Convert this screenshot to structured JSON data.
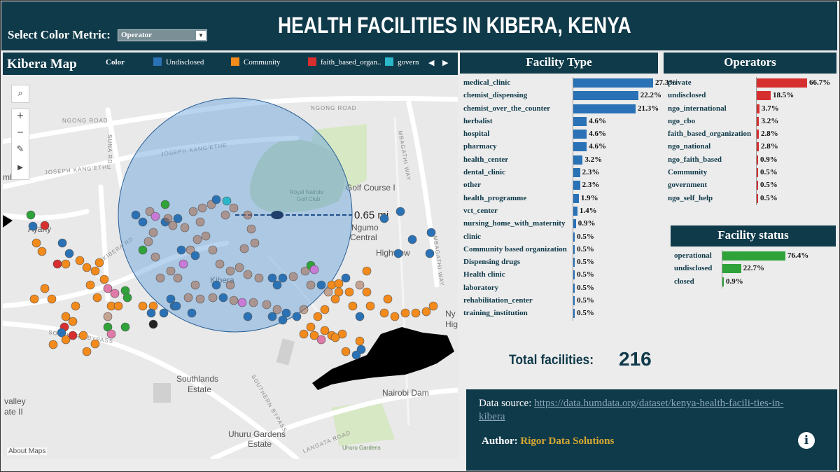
{
  "header": {
    "select_label": "Select Color Metric:",
    "select_value": "Operator",
    "title": "HEALTH FACILITIES IN KIBERA, KENYA"
  },
  "map": {
    "title": "Kibera Map",
    "legend_label": "Color",
    "legend": [
      {
        "label": "Undisclosed",
        "color": "#2a72b5"
      },
      {
        "label": "Community",
        "color": "#f28a1c"
      },
      {
        "label": "faith_based_organ..",
        "color": "#d62f2f"
      },
      {
        "label": "govern",
        "color": "#2bb6c9"
      }
    ],
    "distance": "0.65 mi",
    "place_labels": {
      "ngong_road_1": "NGONG ROAD",
      "ngong_road_2": "NGONG ROAD",
      "suna_rd": "SUNA RD",
      "joseph_kang_ethe_1": "JOSEPH KANG'ETHE",
      "joseph_kang_ethe_2": "JOSEPH KANG'ETHE",
      "mbagathi_way_1": "MBAGATHI WAY",
      "mbagathi_way_2": "MBAGATHI WAY",
      "amhuri": "mhuri",
      "ayany": "Ayany",
      "royal_nairobi": "Royal Nairobi",
      "golf_club": "Golf Club",
      "golf_course": "Golf Course I",
      "ngumo": "Ngumo",
      "central": "Central",
      "highview": "Highview",
      "kibera": "Kibera",
      "kibera_rd": "KIBERA RD",
      "southern_bypass_1": "SOUTHERN BYPASS",
      "southern_bypass_2": "SOUTHERN BYPASS",
      "southlands": "Southlands",
      "estate_1": "Estate",
      "nairobi_dam": "Nairobi Dam",
      "valley": "valley",
      "estate_2": "ate II",
      "uhuru_gardens": "Uhuru Gardens",
      "estate_3": "Estate",
      "uhuru_park": "Uhuru Gardens",
      "langata_road": "LANGATA ROAD",
      "ny": "Ny",
      "hig": "Hig"
    },
    "about": "About Maps",
    "controls": {
      "zoom_in": "+",
      "zoom_out": "−"
    }
  },
  "facility_type": {
    "title": "Facility Type",
    "color": "#2a72b5",
    "items": [
      {
        "label": "medical_clinic",
        "value": 27.3,
        "text": "27.3%"
      },
      {
        "label": "chemist_dispensing",
        "value": 22.2,
        "text": "22.2%"
      },
      {
        "label": "chemist_over_the_counter",
        "value": 21.3,
        "text": "21.3%"
      },
      {
        "label": "herbalist",
        "value": 4.6,
        "text": "4.6%"
      },
      {
        "label": "hospital",
        "value": 4.6,
        "text": "4.6%"
      },
      {
        "label": "pharmacy",
        "value": 4.6,
        "text": "4.6%"
      },
      {
        "label": "health_center",
        "value": 3.2,
        "text": "3.2%"
      },
      {
        "label": "dental_clinic",
        "value": 2.3,
        "text": "2.3%"
      },
      {
        "label": "other",
        "value": 2.3,
        "text": "2.3%"
      },
      {
        "label": "health_programme",
        "value": 1.9,
        "text": "1.9%"
      },
      {
        "label": "vct_center",
        "value": 1.4,
        "text": "1.4%"
      },
      {
        "label": "nursing_home_with_maternity",
        "value": 0.9,
        "text": "0.9%"
      },
      {
        "label": "clinic",
        "value": 0.5,
        "text": "0.5%"
      },
      {
        "label": "Community based organization",
        "value": 0.5,
        "text": "0.5%"
      },
      {
        "label": "Dispensing drugs",
        "value": 0.5,
        "text": "0.5%"
      },
      {
        "label": "Health clinic",
        "value": 0.5,
        "text": "0.5%"
      },
      {
        "label": "laboratory",
        "value": 0.5,
        "text": "0.5%"
      },
      {
        "label": "rehabilitation_center",
        "value": 0.5,
        "text": "0.5%"
      },
      {
        "label": "training_institution",
        "value": 0.5,
        "text": "0.5%"
      }
    ]
  },
  "operators": {
    "title": "Operators",
    "color": "#d62f2f",
    "items": [
      {
        "label": "private",
        "value": 66.7,
        "text": "66.7%"
      },
      {
        "label": "undisclosed",
        "value": 18.5,
        "text": "18.5%"
      },
      {
        "label": "ngo_international",
        "value": 3.7,
        "text": "3.7%"
      },
      {
        "label": "ngo_cbo",
        "value": 3.2,
        "text": "3.2%"
      },
      {
        "label": "faith_based_organization",
        "value": 2.8,
        "text": "2.8%"
      },
      {
        "label": "ngo_national",
        "value": 2.8,
        "text": "2.8%"
      },
      {
        "label": "ngo_faith_based",
        "value": 0.9,
        "text": "0.9%"
      },
      {
        "label": "Community",
        "value": 0.5,
        "text": "0.5%"
      },
      {
        "label": "government",
        "value": 0.5,
        "text": "0.5%"
      },
      {
        "label": "ngo_self_help",
        "value": 0.5,
        "text": "0.5%"
      }
    ]
  },
  "facility_status": {
    "title": "Facility status",
    "color": "#2fa23a",
    "items": [
      {
        "label": "operational",
        "value": 76.4,
        "text": "76.4%"
      },
      {
        "label": "undisclosed",
        "value": 22.7,
        "text": "22.7%"
      },
      {
        "label": "closed",
        "value": 0.9,
        "text": "0.9%"
      }
    ]
  },
  "total": {
    "label": "Total facilities:",
    "value": "216"
  },
  "info": {
    "source_label": "Data source: ",
    "source_url": "https://data.humdata.org/dataset/kenya-health-facili-ties-in-kibera",
    "author_label": "Author: ",
    "author": "Rigor Data Solutions",
    "info_icon": "i"
  }
}
